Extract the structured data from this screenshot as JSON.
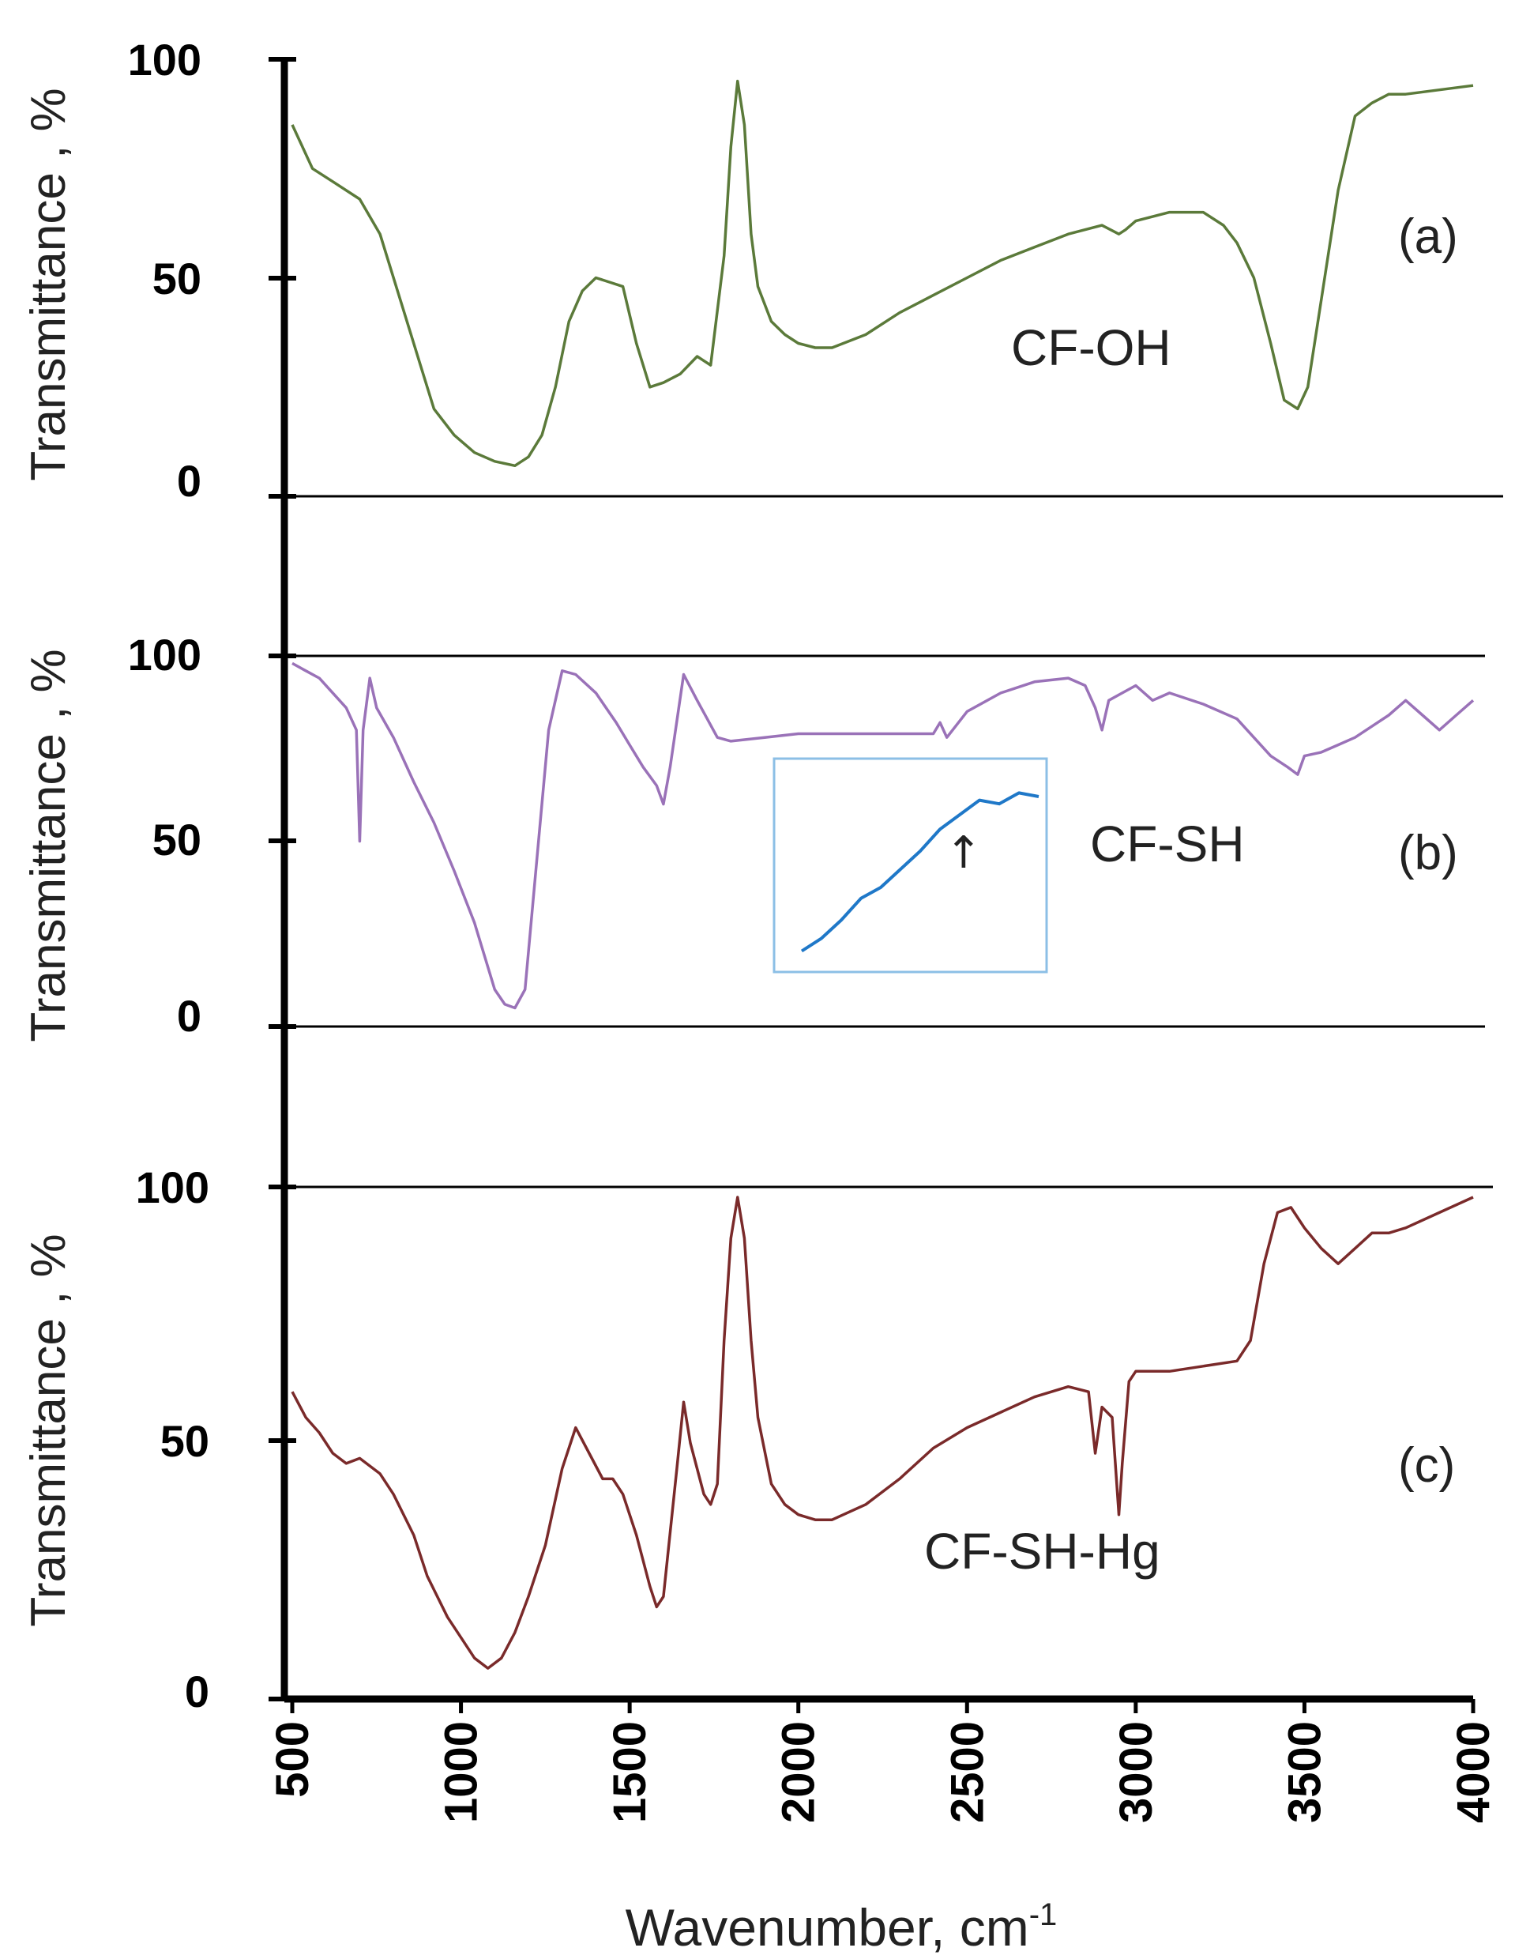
{
  "figure": {
    "x_axis_title": "Wavenumber, cm",
    "x_axis_title_sup": "-1",
    "x_ticks": [
      "500",
      "1000",
      "1500",
      "2000",
      "2500",
      "3000",
      "3500",
      "4000"
    ],
    "y_axis_title": "Transmittance , %",
    "y_ticks": [
      "100",
      "50",
      "0"
    ]
  },
  "chart_data": [
    {
      "type": "line",
      "panel_label": "(a)",
      "sample_label": "CF-OH",
      "color": "#5b7a3a",
      "xlabel": "Wavenumber, cm-1",
      "ylabel": "Transmittance , %",
      "xlim": [
        500,
        4000
      ],
      "ylim": [
        0,
        100
      ],
      "y_ticks": [
        0,
        50,
        100
      ],
      "series": [
        {
          "name": "CF-OH",
          "x": [
            500,
            560,
            620,
            700,
            760,
            820,
            880,
            920,
            980,
            1040,
            1100,
            1160,
            1200,
            1240,
            1280,
            1320,
            1360,
            1400,
            1440,
            1480,
            1520,
            1560,
            1600,
            1650,
            1700,
            1740,
            1780,
            1800,
            1820,
            1840,
            1860,
            1880,
            1920,
            1960,
            2000,
            2050,
            2100,
            2200,
            2300,
            2400,
            2500,
            2600,
            2700,
            2800,
            2900,
            2950,
            2970,
            3000,
            3100,
            3200,
            3260,
            3300,
            3350,
            3400,
            3440,
            3480,
            3510,
            3550,
            3600,
            3650,
            3700,
            3750,
            3800,
            3900,
            4000
          ],
          "y": [
            85,
            75,
            72,
            68,
            60,
            45,
            30,
            20,
            14,
            10,
            8,
            7,
            9,
            14,
            25,
            40,
            47,
            50,
            49,
            48,
            35,
            25,
            26,
            28,
            32,
            30,
            55,
            80,
            95,
            85,
            60,
            48,
            40,
            37,
            35,
            34,
            34,
            37,
            42,
            46,
            50,
            54,
            57,
            60,
            62,
            60,
            61,
            63,
            65,
            65,
            62,
            58,
            50,
            35,
            22,
            20,
            25,
            45,
            70,
            87,
            90,
            92,
            92,
            93,
            94
          ]
        }
      ]
    },
    {
      "type": "line",
      "panel_label": "(b)",
      "sample_label": "CF-SH",
      "color": "#9a72b8",
      "xlabel": "Wavenumber, cm-1",
      "ylabel": "Transmittance , %",
      "xlim": [
        500,
        4000
      ],
      "ylim": [
        0,
        100
      ],
      "y_ticks": [
        0,
        50,
        100
      ],
      "series": [
        {
          "name": "CF-SH",
          "x": [
            500,
            540,
            580,
            620,
            660,
            690,
            700,
            710,
            730,
            750,
            800,
            860,
            920,
            980,
            1040,
            1100,
            1130,
            1160,
            1190,
            1220,
            1260,
            1300,
            1340,
            1400,
            1460,
            1500,
            1540,
            1580,
            1600,
            1620,
            1660,
            1700,
            1760,
            1800,
            1900,
            2000,
            2100,
            2200,
            2300,
            2400,
            2420,
            2440,
            2500,
            2600,
            2700,
            2800,
            2850,
            2880,
            2900,
            2920,
            2960,
            3000,
            3050,
            3100,
            3200,
            3300,
            3350,
            3400,
            3450,
            3480,
            3500,
            3550,
            3600,
            3650,
            3700,
            3750,
            3800,
            3850,
            3900,
            3950,
            4000
          ],
          "y": [
            98,
            96,
            94,
            90,
            86,
            80,
            50,
            80,
            94,
            86,
            78,
            66,
            55,
            42,
            28,
            10,
            6,
            5,
            10,
            40,
            80,
            96,
            95,
            90,
            82,
            76,
            70,
            65,
            60,
            70,
            95,
            88,
            78,
            77,
            78,
            79,
            79,
            79,
            79,
            79,
            82,
            78,
            85,
            90,
            93,
            94,
            92,
            86,
            80,
            88,
            90,
            92,
            88,
            90,
            87,
            83,
            78,
            73,
            70,
            68,
            73,
            74,
            76,
            78,
            81,
            84,
            88,
            84,
            80,
            84,
            88
          ]
        }
      ]
    },
    {
      "type": "line",
      "panel_label": "(c)",
      "sample_label": "CF-SH-Hg",
      "color": "#7a2a2a",
      "xlabel": "Wavenumber, cm-1",
      "ylabel": "Transmittance , %",
      "xlim": [
        500,
        4000
      ],
      "ylim": [
        0,
        100
      ],
      "y_ticks": [
        0,
        50,
        100
      ],
      "series": [
        {
          "name": "CF-SH-Hg",
          "x": [
            500,
            540,
            580,
            620,
            660,
            700,
            760,
            800,
            860,
            900,
            960,
            1000,
            1040,
            1080,
            1120,
            1160,
            1200,
            1250,
            1300,
            1340,
            1380,
            1420,
            1450,
            1480,
            1520,
            1560,
            1580,
            1600,
            1640,
            1660,
            1680,
            1720,
            1740,
            1760,
            1780,
            1800,
            1820,
            1840,
            1860,
            1880,
            1920,
            1960,
            2000,
            2050,
            2100,
            2200,
            2300,
            2400,
            2500,
            2600,
            2700,
            2800,
            2860,
            2880,
            2900,
            2930,
            2950,
            2960,
            2980,
            3000,
            3100,
            3200,
            3300,
            3340,
            3380,
            3420,
            3460,
            3500,
            3550,
            3600,
            3650,
            3700,
            3750,
            3800,
            3900,
            4000
          ],
          "y": [
            60,
            55,
            52,
            48,
            46,
            47,
            44,
            40,
            32,
            24,
            16,
            12,
            8,
            6,
            8,
            13,
            20,
            30,
            45,
            53,
            48,
            43,
            43,
            40,
            32,
            22,
            18,
            20,
            45,
            58,
            50,
            40,
            38,
            42,
            70,
            90,
            98,
            90,
            70,
            55,
            42,
            38,
            36,
            35,
            35,
            38,
            43,
            49,
            53,
            56,
            59,
            61,
            60,
            48,
            57,
            55,
            36,
            46,
            62,
            64,
            64,
            65,
            66,
            70,
            85,
            95,
            96,
            92,
            88,
            85,
            88,
            91,
            91,
            92,
            95,
            98
          ]
        }
      ]
    }
  ],
  "inset": {
    "color": "#1f78c8",
    "border_color": "#8cbfe6",
    "arrow": "↑",
    "description_values": [
      5,
      12,
      22,
      34,
      40,
      50,
      60,
      72,
      80,
      88,
      86,
      92,
      90
    ]
  }
}
